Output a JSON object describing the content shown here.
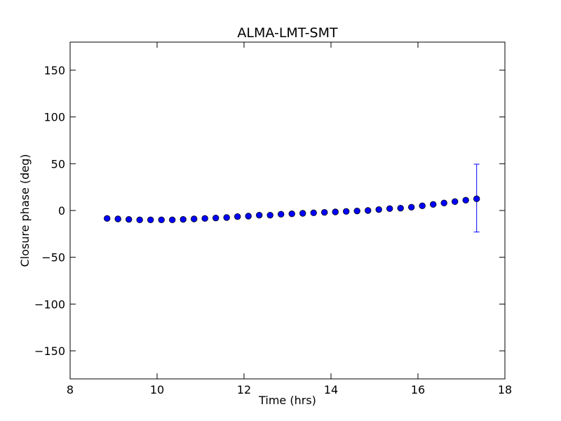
{
  "chart_data": {
    "type": "scatter",
    "title": "ALMA-LMT-SMT",
    "xlabel": "Time (hrs)",
    "ylabel": "Closure phase (deg)",
    "xlim": [
      8,
      18
    ],
    "ylim": [
      -180,
      180
    ],
    "xticks": [
      8,
      10,
      12,
      14,
      16,
      18
    ],
    "yticks": [
      -150,
      -100,
      -50,
      0,
      50,
      100,
      150
    ],
    "xtick_labels": [
      "8",
      "10",
      "12",
      "14",
      "16",
      "18"
    ],
    "ytick_labels": [
      "−150",
      "−100",
      "−50",
      "0",
      "50",
      "100",
      "150"
    ],
    "grid": false,
    "marker_color": "#0000ff",
    "marker_edge_color": "#000000",
    "errorbar_color": "#0000ff",
    "series": [
      {
        "x": [
          8.85,
          9.1,
          9.35,
          9.6,
          9.85,
          10.1,
          10.35,
          10.6,
          10.85,
          11.1,
          11.35,
          11.6,
          11.85,
          12.1,
          12.35,
          12.6,
          12.85,
          13.1,
          13.35,
          13.6,
          13.85,
          14.1,
          14.35,
          14.6,
          14.85,
          15.1,
          15.35,
          15.6,
          15.85,
          16.1,
          16.35,
          16.6,
          16.85,
          17.1,
          17.35
        ],
        "y": [
          -8.5,
          -9,
          -9.5,
          -10,
          -10,
          -10,
          -10,
          -9.5,
          -9,
          -8.5,
          -8,
          -7.5,
          -6.5,
          -6,
          -5,
          -5,
          -4,
          -3.5,
          -3,
          -2.5,
          -2,
          -1.5,
          -1,
          -0.5,
          0,
          1,
          2,
          2.5,
          3.5,
          5,
          6.5,
          8,
          9.5,
          11,
          12.5
        ],
        "yerr_low": [
          -8.5,
          -9,
          -9.5,
          -10,
          -10,
          -10,
          -10,
          -9.5,
          -9,
          -8.5,
          -8,
          -7.5,
          -6.5,
          -6,
          -5,
          -5,
          -4,
          -3.5,
          -3,
          -2.5,
          -2,
          -1.5,
          -1,
          -0.5,
          0,
          1,
          2,
          2.5,
          3.5,
          5,
          6.5,
          8,
          9.5,
          11,
          -23
        ],
        "yerr_high": [
          -8.5,
          -9,
          -9.5,
          -10,
          -10,
          -10,
          -10,
          -9.5,
          -9,
          -8.5,
          -8,
          -7.5,
          -6.5,
          -6,
          -5,
          -5,
          -4,
          -3.5,
          -3,
          -2.5,
          -2,
          -1.5,
          -1,
          -0.5,
          0,
          1,
          2,
          2.5,
          3.5,
          5,
          6.5,
          8,
          9.5,
          11,
          49.5
        ]
      }
    ]
  }
}
